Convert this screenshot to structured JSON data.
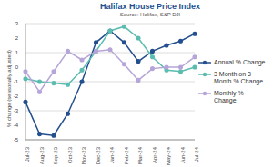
{
  "chart_data": {
    "type": "line",
    "title": "Halifax House Price Index",
    "subtitle": "Source: Halifax, S&P DJI",
    "y_label": "% change (seasonally adjusted)",
    "categories": [
      "Jul-23",
      "Aug-23",
      "Sep-23",
      "Oct-23",
      "Nov-23",
      "Dec-23",
      "Jan-24",
      "Feb-24",
      "Mar-24",
      "Apr-24",
      "May-24",
      "Jun-24",
      "Jul-24"
    ],
    "series": [
      {
        "name": "Annual % Change",
        "color": "#234f8e",
        "marker": "circle",
        "values": [
          -2.4,
          -4.6,
          -4.7,
          -3.2,
          -1.0,
          1.7,
          2.5,
          1.7,
          0.4,
          1.1,
          1.5,
          1.8,
          2.3
        ]
      },
      {
        "name": "3 Month on 3 Month % Change",
        "color": "#5bbcb0",
        "marker": "circle",
        "values": [
          -0.8,
          -1.0,
          -1.1,
          -1.2,
          -0.2,
          1.1,
          2.5,
          2.8,
          2.0,
          0.7,
          -0.2,
          -0.3,
          0.0
        ]
      },
      {
        "name": "Monthly % Change",
        "color": "#b6a5d8",
        "marker": "circle",
        "values": [
          -0.3,
          -1.7,
          -0.3,
          1.1,
          0.5,
          1.1,
          1.2,
          0.2,
          -0.9,
          -0.1,
          0.0,
          0.0,
          0.7
        ]
      }
    ],
    "ylim": [
      -5,
      3
    ],
    "yticks": [
      -5,
      -4,
      -3,
      -2,
      -1,
      0,
      1,
      2,
      3
    ],
    "grid": true,
    "legend": "right"
  }
}
